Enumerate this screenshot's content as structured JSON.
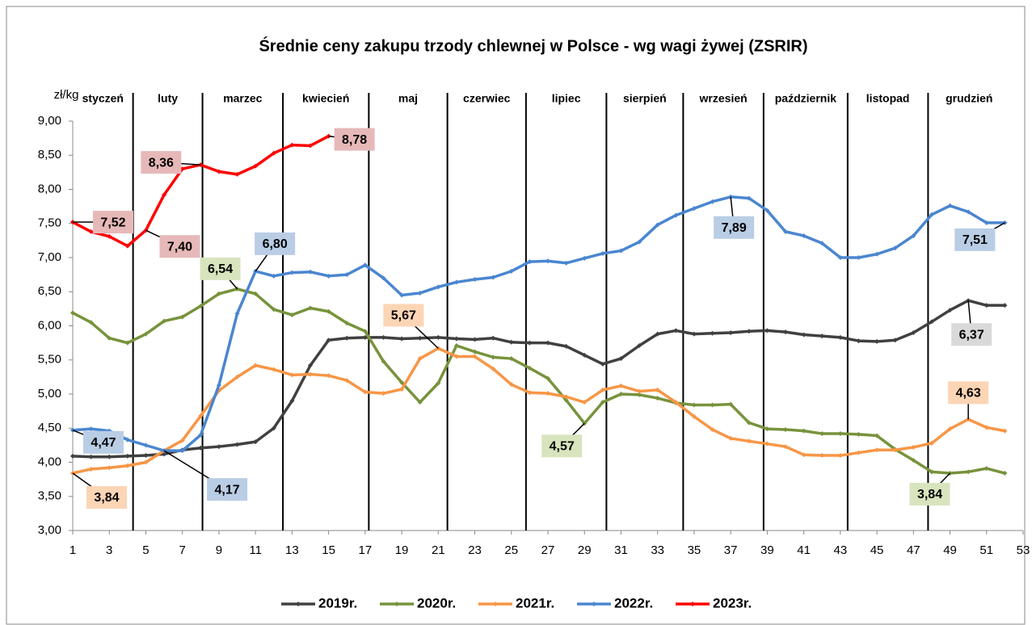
{
  "chart_data": {
    "type": "line",
    "title": "Średnie ceny zakupu trzody chlewnej w Polsce - wg wagi żywej (ZSRIR)",
    "y_label": "zł/kg",
    "x": [
      1,
      2,
      3,
      4,
      5,
      6,
      7,
      8,
      9,
      10,
      11,
      12,
      13,
      14,
      15,
      16,
      17,
      18,
      19,
      20,
      21,
      22,
      23,
      24,
      25,
      26,
      27,
      28,
      29,
      30,
      31,
      32,
      33,
      34,
      35,
      36,
      37,
      38,
      39,
      40,
      41,
      42,
      43,
      44,
      45,
      46,
      47,
      48,
      49,
      50,
      51,
      52
    ],
    "xlim": [
      1,
      53
    ],
    "xticks": [
      1,
      3,
      5,
      7,
      9,
      11,
      13,
      15,
      17,
      19,
      21,
      23,
      25,
      27,
      29,
      31,
      33,
      35,
      37,
      39,
      41,
      43,
      45,
      47,
      49,
      51,
      53
    ],
    "ylim": [
      3,
      9
    ],
    "yticks": [
      {
        "value": 3,
        "label": "3,00"
      },
      {
        "value": 3.5,
        "label": "3,50"
      },
      {
        "value": 4,
        "label": "4,00"
      },
      {
        "value": 4.5,
        "label": "4,50"
      },
      {
        "value": 5,
        "label": "5,00"
      },
      {
        "value": 5.5,
        "label": "5,50"
      },
      {
        "value": 6,
        "label": "6,00"
      },
      {
        "value": 6.5,
        "label": "6,50"
      },
      {
        "value": 7,
        "label": "7,00"
      },
      {
        "value": 7.5,
        "label": "7,50"
      },
      {
        "value": 8,
        "label": "8,00"
      },
      {
        "value": 8.5,
        "label": "8,50"
      },
      {
        "value": 9,
        "label": "9,00"
      }
    ],
    "grid": false,
    "months": [
      "styczeń",
      "luty",
      "marzec",
      "kwiecień",
      "maj",
      "czerwiec",
      "lipiec",
      "sierpień",
      "wrzesień",
      "październik",
      "listopad",
      "grudzień"
    ],
    "month_boundaries": [
      4.3,
      8.1,
      12.5,
      17.2,
      21.5,
      25.8,
      30.2,
      34.4,
      38.8,
      43.4,
      47.8
    ],
    "series": [
      {
        "name": "2019r.",
        "color": "#404040",
        "label_fill": "#d9d9d9",
        "values": [
          4.09,
          4.08,
          4.08,
          4.09,
          4.1,
          4.12,
          4.18,
          4.21,
          4.23,
          4.26,
          4.3,
          4.5,
          4.9,
          5.42,
          5.79,
          5.82,
          5.83,
          5.83,
          5.81,
          5.82,
          5.83,
          5.81,
          5.8,
          5.82,
          5.76,
          5.75,
          5.75,
          5.7,
          5.57,
          5.44,
          5.52,
          5.71,
          5.88,
          5.93,
          5.88,
          5.89,
          5.9,
          5.92,
          5.93,
          5.91,
          5.87,
          5.85,
          5.83,
          5.78,
          5.77,
          5.79,
          5.9,
          6.06,
          6.23,
          6.37,
          6.3,
          6.3
        ]
      },
      {
        "name": "2020r.",
        "color": "#77933c",
        "label_fill": "#d7e4bd",
        "values": [
          6.19,
          6.05,
          5.82,
          5.75,
          5.88,
          6.07,
          6.13,
          6.29,
          6.47,
          6.54,
          6.47,
          6.24,
          6.16,
          6.26,
          6.21,
          6.04,
          5.92,
          5.48,
          5.17,
          4.88,
          5.16,
          5.71,
          5.62,
          5.54,
          5.52,
          5.38,
          5.23,
          4.91,
          4.57,
          4.88,
          5.0,
          4.99,
          4.94,
          4.87,
          4.84,
          4.84,
          4.85,
          4.58,
          4.49,
          4.48,
          4.46,
          4.42,
          4.42,
          4.41,
          4.39,
          4.19,
          4.03,
          3.86,
          3.84,
          3.86,
          3.91,
          3.84
        ]
      },
      {
        "name": "2021r.",
        "color": "#f79646",
        "label_fill": "#fcd5b5",
        "values": [
          3.84,
          3.9,
          3.92,
          3.95,
          4.0,
          4.17,
          4.32,
          4.68,
          5.05,
          5.25,
          5.42,
          5.36,
          5.28,
          5.29,
          5.27,
          5.2,
          5.03,
          5.01,
          5.07,
          5.52,
          5.67,
          5.55,
          5.55,
          5.37,
          5.14,
          5.02,
          5.01,
          4.96,
          4.88,
          5.06,
          5.12,
          5.04,
          5.06,
          4.88,
          4.67,
          4.48,
          4.35,
          4.31,
          4.27,
          4.23,
          4.11,
          4.1,
          4.1,
          4.14,
          4.18,
          4.18,
          4.22,
          4.28,
          4.49,
          4.63,
          4.51,
          4.46
        ]
      },
      {
        "name": "2022r.",
        "color": "#4a86d0",
        "label_fill": "#b9cde5",
        "values": [
          4.47,
          4.49,
          4.46,
          4.33,
          4.25,
          4.17,
          4.17,
          4.4,
          5.13,
          6.18,
          6.8,
          6.73,
          6.78,
          6.79,
          6.73,
          6.75,
          6.89,
          6.7,
          6.45,
          6.48,
          6.57,
          6.64,
          6.68,
          6.71,
          6.8,
          6.94,
          6.95,
          6.92,
          6.99,
          7.06,
          7.1,
          7.23,
          7.48,
          7.62,
          7.72,
          7.82,
          7.89,
          7.87,
          7.69,
          7.38,
          7.32,
          7.21,
          7.0,
          7.0,
          7.05,
          7.14,
          7.32,
          7.63,
          7.76,
          7.67,
          7.51,
          7.51
        ]
      },
      {
        "name": "2023r.",
        "color": "#ff0000",
        "label_fill": "#e6b9b8",
        "values": [
          7.52,
          7.38,
          7.31,
          7.17,
          7.4,
          7.92,
          8.3,
          8.36,
          8.26,
          8.22,
          8.34,
          8.53,
          8.65,
          8.64,
          8.78,
          null,
          null,
          null,
          null,
          null,
          null,
          null,
          null,
          null,
          null,
          null,
          null,
          null,
          null,
          null,
          null,
          null,
          null,
          null,
          null,
          null,
          null,
          null,
          null,
          null,
          null,
          null,
          null,
          null,
          null,
          null,
          null,
          null,
          null,
          null,
          null,
          null
        ]
      }
    ],
    "annotations": [
      {
        "series": 4,
        "index": 0,
        "label": "7,52"
      },
      {
        "series": 4,
        "index": 4,
        "label": "7,40"
      },
      {
        "series": 4,
        "index": 7,
        "label": "8,36"
      },
      {
        "series": 4,
        "index": 14,
        "label": "8,78"
      },
      {
        "series": 1,
        "index": 9,
        "label": "6,54"
      },
      {
        "series": 3,
        "index": 10,
        "label": "6,80"
      },
      {
        "series": 3,
        "index": 0,
        "label": "4,47"
      },
      {
        "series": 2,
        "index": 0,
        "label": "3,84"
      },
      {
        "series": 3,
        "index": 5,
        "label": "4,17"
      },
      {
        "series": 2,
        "index": 20,
        "label": "5,67"
      },
      {
        "series": 1,
        "index": 28,
        "label": "4,57"
      },
      {
        "series": 3,
        "index": 36,
        "label": "7,89"
      },
      {
        "series": 0,
        "index": 49,
        "label": "6,37"
      },
      {
        "series": 3,
        "index": 51,
        "label": "7,51"
      },
      {
        "series": 2,
        "index": 49,
        "label": "4,63"
      },
      {
        "series": 1,
        "index": 48,
        "label": "3,84"
      }
    ]
  }
}
